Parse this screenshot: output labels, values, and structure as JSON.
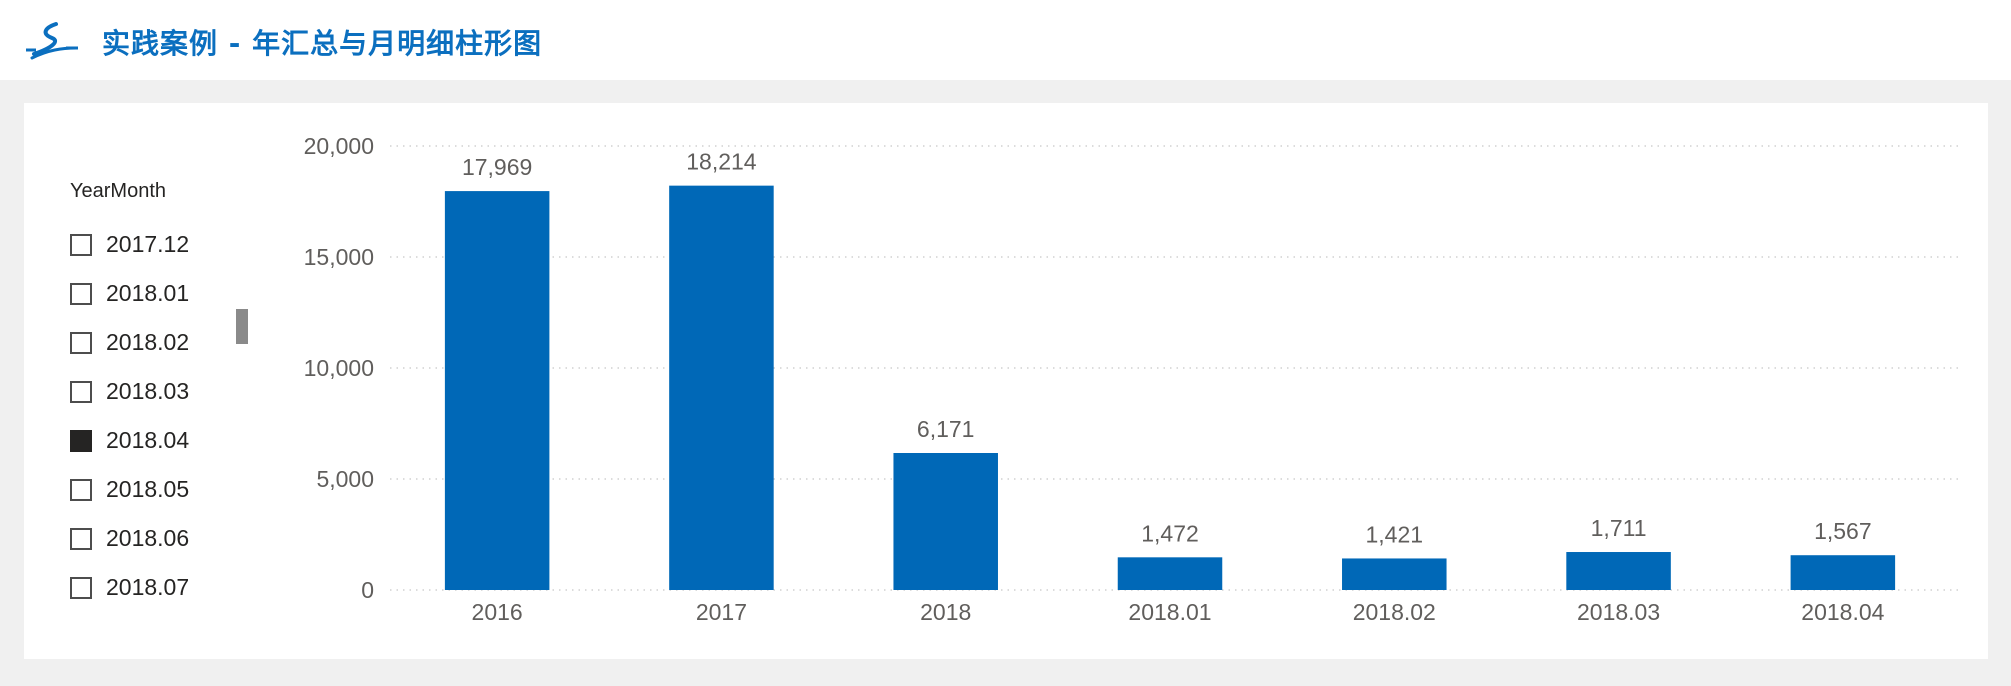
{
  "header": {
    "title": "实践案例 - 年汇总与月明细柱形图",
    "logo_icon": "swoosh-logo-icon",
    "accent_color": "#0b6fbf"
  },
  "slicer": {
    "title": "YearMonth",
    "items": [
      {
        "label": "2017.12",
        "checked": false
      },
      {
        "label": "2018.01",
        "checked": false
      },
      {
        "label": "2018.02",
        "checked": false
      },
      {
        "label": "2018.03",
        "checked": false
      },
      {
        "label": "2018.04",
        "checked": true
      },
      {
        "label": "2018.05",
        "checked": false
      },
      {
        "label": "2018.06",
        "checked": false
      },
      {
        "label": "2018.07",
        "checked": false
      }
    ]
  },
  "chart_data": {
    "type": "bar",
    "categories": [
      "2016",
      "2017",
      "2018",
      "2018.01",
      "2018.02",
      "2018.03",
      "2018.04"
    ],
    "values": [
      17969,
      18214,
      6171,
      1472,
      1421,
      1711,
      1567
    ],
    "data_labels": [
      "17,969",
      "18,214",
      "6,171",
      "1,472",
      "1,421",
      "1,711",
      "1,567"
    ],
    "y_ticks": [
      "0",
      "5,000",
      "10,000",
      "15,000",
      "20,000"
    ],
    "y_tick_values": [
      0,
      5000,
      10000,
      15000,
      20000
    ],
    "ylim": [
      0,
      20000
    ],
    "title": "",
    "xlabel": "",
    "ylabel": "",
    "grid": true,
    "legend": "none",
    "bar_color": "#0068b7"
  }
}
